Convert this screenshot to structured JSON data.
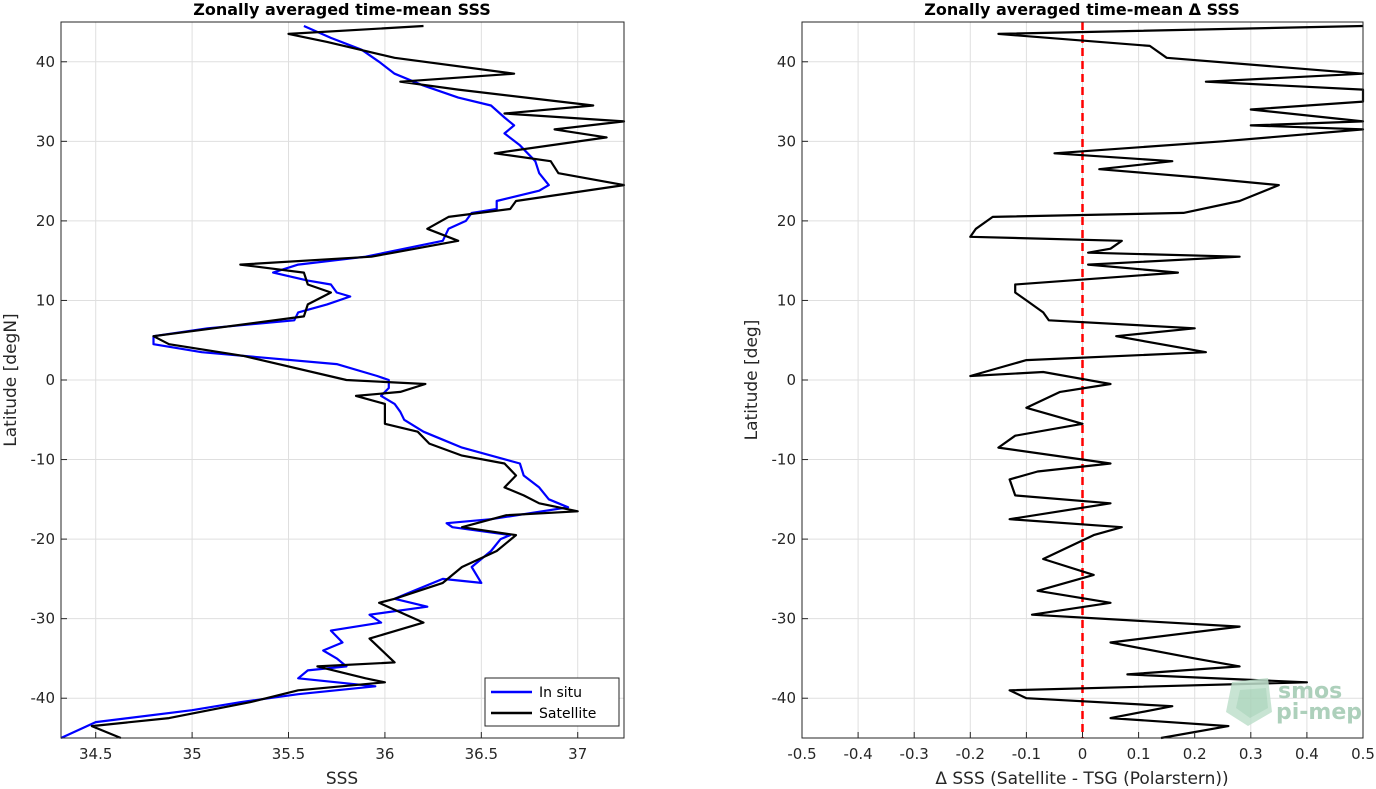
{
  "chart_data": [
    {
      "type": "line",
      "title": "Zonally averaged time-mean SSS",
      "xlabel": "SSS",
      "ylabel": "Latitude [degN]",
      "xlim": [
        34.32,
        37.24
      ],
      "ylim": [
        -45,
        45
      ],
      "xticks": [
        "34.5",
        "35",
        "35.5",
        "36",
        "36.5",
        "37"
      ],
      "yticks": [
        "40",
        "30",
        "20",
        "10",
        "0",
        "-10",
        "-20",
        "-30",
        "-40"
      ],
      "grid": true,
      "legend_position": "bottom-right",
      "series": [
        {
          "name": "In situ",
          "color": "#0000ff",
          "points": [
            [
              35.58,
              44.5
            ],
            [
              35.72,
              43.0
            ],
            [
              35.88,
              41.5
            ],
            [
              35.97,
              40.0
            ],
            [
              36.05,
              38.5
            ],
            [
              36.2,
              37.0
            ],
            [
              36.38,
              35.5
            ],
            [
              36.55,
              34.5
            ],
            [
              36.62,
              33.0
            ],
            [
              36.67,
              32.0
            ],
            [
              36.62,
              31.0
            ],
            [
              36.7,
              29.5
            ],
            [
              36.78,
              27.5
            ],
            [
              36.8,
              26.0
            ],
            [
              36.85,
              24.5
            ],
            [
              36.8,
              23.8
            ],
            [
              36.58,
              22.5
            ],
            [
              36.58,
              21.5
            ],
            [
              36.45,
              21.0
            ],
            [
              36.42,
              20.0
            ],
            [
              36.33,
              19.0
            ],
            [
              36.3,
              17.5
            ],
            [
              35.9,
              15.5
            ],
            [
              35.55,
              14.5
            ],
            [
              35.42,
              13.5
            ],
            [
              35.6,
              12.5
            ],
            [
              35.72,
              12.0
            ],
            [
              35.75,
              11.0
            ],
            [
              35.82,
              10.5
            ],
            [
              35.7,
              9.5
            ],
            [
              35.55,
              8.5
            ],
            [
              35.53,
              7.5
            ],
            [
              35.08,
              6.5
            ],
            [
              34.8,
              5.5
            ],
            [
              34.8,
              4.5
            ],
            [
              35.05,
              3.5
            ],
            [
              35.75,
              2.0
            ],
            [
              35.96,
              0.5
            ],
            [
              36.02,
              0.0
            ],
            [
              36.02,
              -1.0
            ],
            [
              35.98,
              -2.0
            ],
            [
              36.05,
              -3.0
            ],
            [
              36.08,
              -4.0
            ],
            [
              36.1,
              -5.0
            ],
            [
              36.2,
              -6.5
            ],
            [
              36.25,
              -7.0
            ],
            [
              36.3,
              -7.5
            ],
            [
              36.4,
              -8.5
            ],
            [
              36.55,
              -9.5
            ],
            [
              36.7,
              -10.5
            ],
            [
              36.72,
              -12.0
            ],
            [
              36.8,
              -13.5
            ],
            [
              36.85,
              -15.0
            ],
            [
              36.95,
              -16.0
            ],
            [
              36.55,
              -17.5
            ],
            [
              36.32,
              -18.0
            ],
            [
              36.35,
              -18.5
            ],
            [
              36.65,
              -19.5
            ],
            [
              36.6,
              -20.0
            ],
            [
              36.55,
              -21.5
            ],
            [
              36.45,
              -23.5
            ],
            [
              36.5,
              -25.5
            ],
            [
              36.3,
              -25.0
            ],
            [
              36.15,
              -26.5
            ],
            [
              36.05,
              -27.5
            ],
            [
              36.22,
              -28.5
            ],
            [
              35.92,
              -29.5
            ],
            [
              35.98,
              -30.5
            ],
            [
              35.72,
              -31.5
            ],
            [
              35.78,
              -33.0
            ],
            [
              35.68,
              -34.0
            ],
            [
              35.75,
              -35.0
            ],
            [
              35.8,
              -36.0
            ],
            [
              35.6,
              -36.5
            ],
            [
              35.55,
              -37.5
            ],
            [
              35.95,
              -38.5
            ],
            [
              35.55,
              -39.5
            ],
            [
              35.25,
              -40.5
            ],
            [
              35.0,
              -41.5
            ],
            [
              34.5,
              -43.0
            ],
            [
              34.32,
              -45.0
            ]
          ]
        },
        {
          "name": "Satellite",
          "color": "#000000",
          "points": [
            [
              36.2,
              44.5
            ],
            [
              35.5,
              43.5
            ],
            [
              35.7,
              42.5
            ],
            [
              36.05,
              40.5
            ],
            [
              36.67,
              38.5
            ],
            [
              36.08,
              37.5
            ],
            [
              36.38,
              36.5
            ],
            [
              37.08,
              34.5
            ],
            [
              36.62,
              33.5
            ],
            [
              37.24,
              32.5
            ],
            [
              36.88,
              31.5
            ],
            [
              37.15,
              30.5
            ],
            [
              36.57,
              28.5
            ],
            [
              36.86,
              27.5
            ],
            [
              36.9,
              26.0
            ],
            [
              37.24,
              24.5
            ],
            [
              36.68,
              22.5
            ],
            [
              36.65,
              21.5
            ],
            [
              36.33,
              20.5
            ],
            [
              36.22,
              19.0
            ],
            [
              36.38,
              17.5
            ],
            [
              35.93,
              15.5
            ],
            [
              35.25,
              14.5
            ],
            [
              35.58,
              13.5
            ],
            [
              35.6,
              12.0
            ],
            [
              35.72,
              11.0
            ],
            [
              35.6,
              9.5
            ],
            [
              35.58,
              8.0
            ],
            [
              34.8,
              5.5
            ],
            [
              34.88,
              4.5
            ],
            [
              35.27,
              3.0
            ],
            [
              35.8,
              0.0
            ],
            [
              36.21,
              -0.5
            ],
            [
              36.08,
              -1.5
            ],
            [
              35.85,
              -2.0
            ],
            [
              36.0,
              -3.0
            ],
            [
              36.0,
              -5.5
            ],
            [
              36.17,
              -6.5
            ],
            [
              36.23,
              -8.0
            ],
            [
              36.4,
              -9.5
            ],
            [
              36.62,
              -10.5
            ],
            [
              36.68,
              -12.0
            ],
            [
              36.62,
              -13.5
            ],
            [
              36.72,
              -14.5
            ],
            [
              36.8,
              -15.5
            ],
            [
              37.0,
              -16.5
            ],
            [
              36.63,
              -17.0
            ],
            [
              36.4,
              -18.5
            ],
            [
              36.68,
              -19.5
            ],
            [
              36.58,
              -21.5
            ],
            [
              36.4,
              -23.5
            ],
            [
              36.3,
              -25.5
            ],
            [
              36.05,
              -27.5
            ],
            [
              35.97,
              -28.0
            ],
            [
              36.2,
              -30.5
            ],
            [
              35.92,
              -32.5
            ],
            [
              36.05,
              -35.5
            ],
            [
              35.65,
              -36.0
            ],
            [
              35.9,
              -37.5
            ],
            [
              36.0,
              -38.0
            ],
            [
              35.55,
              -39.0
            ],
            [
              35.3,
              -40.5
            ],
            [
              34.88,
              -42.5
            ],
            [
              34.48,
              -43.5
            ],
            [
              34.63,
              -45.0
            ]
          ]
        }
      ]
    },
    {
      "type": "line",
      "title": "Zonally averaged time-mean Δ SSS",
      "xlabel": "Δ SSS (Satellite - TSG (Polarstern))",
      "ylabel": "Latitude [deg]",
      "xlim": [
        -0.5,
        0.5
      ],
      "ylim": [
        -45,
        45
      ],
      "xticks": [
        "-0.5",
        "-0.4",
        "-0.3",
        "-0.2",
        "-0.1",
        "0",
        "0.1",
        "0.2",
        "0.3",
        "0.4",
        "0.5"
      ],
      "yticks": [
        "40",
        "30",
        "20",
        "10",
        "0",
        "-10",
        "-20",
        "-30",
        "-40"
      ],
      "grid": true,
      "reference_line": {
        "x": 0,
        "color": "#ff0000",
        "style": "dashed"
      },
      "series": [
        {
          "name": "",
          "color": "#000000",
          "points": [
            [
              0.55,
              44.5
            ],
            [
              -0.15,
              43.5
            ],
            [
              0.12,
              42.0
            ],
            [
              0.15,
              40.5
            ],
            [
              0.5,
              38.5
            ],
            [
              0.22,
              37.5
            ],
            [
              0.5,
              36.5
            ],
            [
              0.5,
              35.0
            ],
            [
              0.3,
              34.0
            ],
            [
              0.5,
              32.5
            ],
            [
              0.3,
              32.0
            ],
            [
              0.5,
              31.5
            ],
            [
              0.25,
              30.0
            ],
            [
              -0.05,
              28.5
            ],
            [
              0.16,
              27.5
            ],
            [
              0.03,
              26.5
            ],
            [
              0.2,
              25.5
            ],
            [
              0.35,
              24.5
            ],
            [
              0.28,
              22.5
            ],
            [
              0.18,
              21.0
            ],
            [
              -0.16,
              20.5
            ],
            [
              -0.19,
              19.0
            ],
            [
              -0.2,
              18.0
            ],
            [
              0.07,
              17.5
            ],
            [
              0.05,
              16.5
            ],
            [
              0.01,
              16.0
            ],
            [
              0.28,
              15.5
            ],
            [
              0.01,
              14.5
            ],
            [
              0.17,
              13.5
            ],
            [
              -0.12,
              12.0
            ],
            [
              -0.12,
              11.0
            ],
            [
              -0.1,
              10.0
            ],
            [
              -0.08,
              9.0
            ],
            [
              -0.07,
              8.5
            ],
            [
              -0.06,
              7.5
            ],
            [
              0.2,
              6.5
            ],
            [
              0.06,
              5.5
            ],
            [
              0.22,
              3.5
            ],
            [
              -0.1,
              2.5
            ],
            [
              -0.2,
              0.5
            ],
            [
              -0.07,
              1.0
            ],
            [
              0.05,
              -0.5
            ],
            [
              -0.04,
              -1.5
            ],
            [
              -0.1,
              -3.5
            ],
            [
              0.0,
              -5.5
            ],
            [
              -0.12,
              -7.0
            ],
            [
              -0.15,
              -8.5
            ],
            [
              0.05,
              -10.5
            ],
            [
              -0.08,
              -11.5
            ],
            [
              -0.13,
              -12.5
            ],
            [
              -0.12,
              -14.5
            ],
            [
              0.05,
              -15.5
            ],
            [
              -0.13,
              -17.5
            ],
            [
              0.07,
              -18.5
            ],
            [
              0.02,
              -19.5
            ],
            [
              -0.07,
              -22.5
            ],
            [
              0.02,
              -24.5
            ],
            [
              -0.08,
              -26.5
            ],
            [
              0.05,
              -28.0
            ],
            [
              -0.09,
              -29.5
            ],
            [
              0.28,
              -31.0
            ],
            [
              0.05,
              -33.0
            ],
            [
              0.2,
              -35.0
            ],
            [
              0.28,
              -36.0
            ],
            [
              0.08,
              -37.0
            ],
            [
              0.4,
              -38.0
            ],
            [
              -0.13,
              -39.0
            ],
            [
              -0.1,
              -40.0
            ],
            [
              0.16,
              -41.0
            ],
            [
              0.05,
              -42.5
            ],
            [
              0.26,
              -43.5
            ],
            [
              0.14,
              -45.0
            ]
          ]
        }
      ]
    }
  ],
  "legend": {
    "entries": [
      "In situ",
      "Satellite"
    ]
  },
  "watermark": {
    "line1": "smos",
    "line2": "pi-mep",
    "color": "#9fc8b0"
  }
}
